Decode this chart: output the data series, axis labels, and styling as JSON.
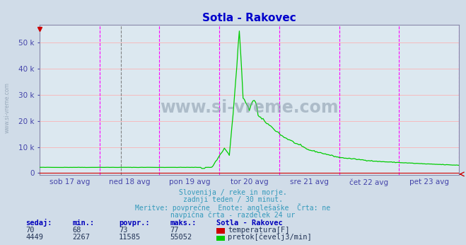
{
  "title": "Sotla - Rakovec",
  "title_color": "#0000cc",
  "bg_color": "#d0dce8",
  "plot_bg_color": "#dce8f0",
  "grid_color_h": "#ffaaaa",
  "grid_color_v": "#ff44ff",
  "axis_color": "#8888aa",
  "tick_color": "#4444aa",
  "ylabel_ticks": [
    "0",
    "10 k",
    "20 k",
    "30 k",
    "40 k",
    "50 k"
  ],
  "ylabel_values": [
    0,
    10000,
    20000,
    30000,
    40000,
    50000
  ],
  "ymax": 57000,
  "x_labels": [
    "sob 17 avg",
    "ned 18 avg",
    "pon 19 avg",
    "tor 20 avg",
    "sre 21 avg",
    "čet 22 avg",
    "pet 23 avg"
  ],
  "n_points": 337,
  "watermark": "www.si-vreme.com",
  "footer_line1": "Slovenija / reke in morje.",
  "footer_line2": "zadnji teden / 30 minut.",
  "footer_line3": "Meritve: povprečne  Enote: anglešaške  Črta: ne",
  "footer_line4": "navpična črta - razdelek 24 ur",
  "footer_color": "#3399bb",
  "table_headers": [
    "sedaj:",
    "min.:",
    "povpr.:",
    "maks.:",
    "Sotla - Rakovec"
  ],
  "table_row1": [
    "70",
    "68",
    "73",
    "77",
    "temperatura[F]"
  ],
  "table_row2": [
    "4449",
    "2267",
    "11585",
    "55052",
    "pretok[čevelj3/min]"
  ],
  "temp_color": "#cc0000",
  "flow_color": "#00cc00",
  "left_label": "www.si-vreme.com",
  "left_label_color": "#99aabb"
}
